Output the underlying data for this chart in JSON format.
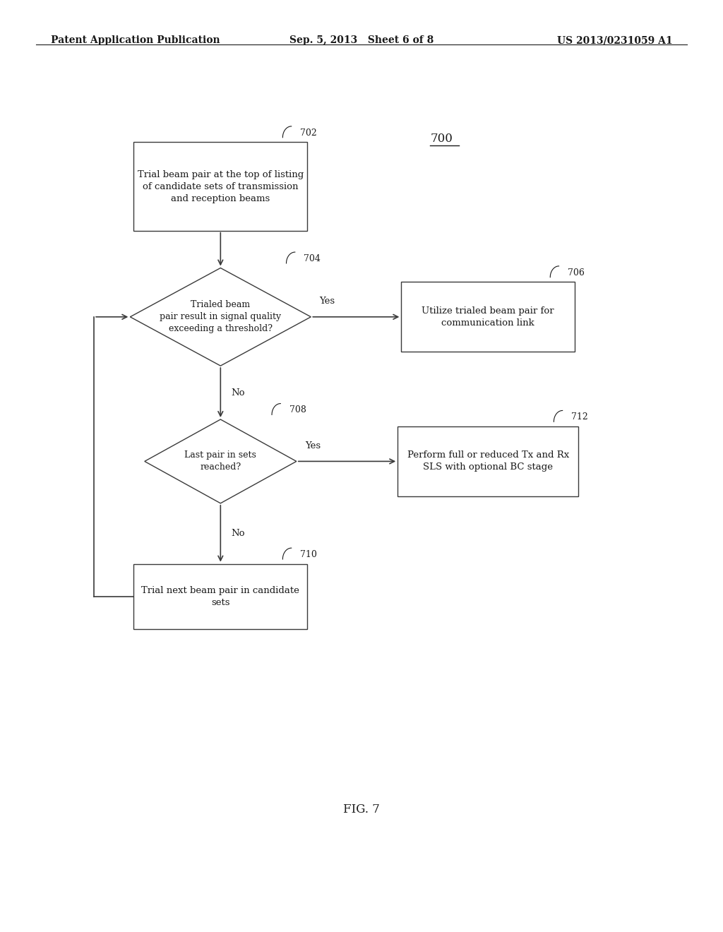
{
  "bg_color": "#ffffff",
  "header_left": "Patent Application Publication",
  "header_center": "Sep. 5, 2013   Sheet 6 of 8",
  "header_right": "US 2013/0231059 A1",
  "fig_label": "FIG. 7",
  "diagram_label": "700",
  "text_color": "#1a1a1a",
  "line_color": "#3a3a3a",
  "font_size": 9.5,
  "header_font_size": 10
}
